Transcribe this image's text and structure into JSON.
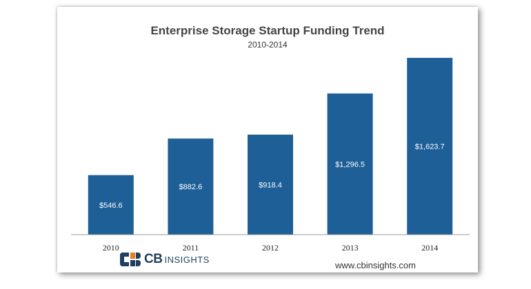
{
  "chart_data": {
    "type": "bar",
    "title": "Enterprise Storage Startup Funding Trend",
    "subtitle": "2010-2014",
    "categories": [
      "2010",
      "2011",
      "2012",
      "2013",
      "2014"
    ],
    "values": [
      546.6,
      882.6,
      918.4,
      1296.5,
      1623.7
    ],
    "value_labels": [
      "$546.6",
      "$882.6",
      "$918.4",
      "$1,296.5",
      "$1,623.7"
    ],
    "xlabel": "",
    "ylabel": "",
    "ylim": [
      0,
      1700
    ],
    "grid": false,
    "bar_color": "#1d5f96"
  },
  "branding": {
    "logo_cb": "CB",
    "logo_insights": "INSIGHTS",
    "website": "www.cbinsights.com"
  }
}
